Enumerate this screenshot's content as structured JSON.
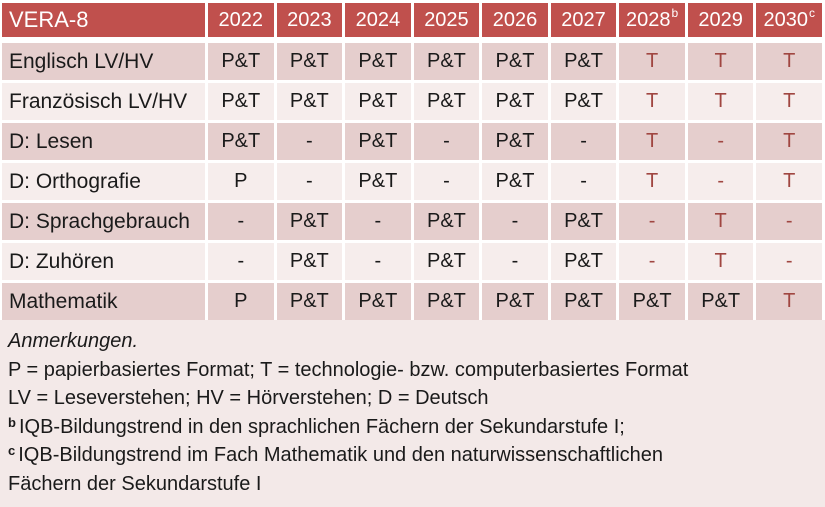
{
  "colors": {
    "header_bg": "#C0504D",
    "header_text": "#FFFFFF",
    "row_band_dark": "#E5CECD",
    "row_band_light": "#F6EDEC",
    "notes_bg": "#F3E9E8",
    "highlight_text": "#A04641",
    "body_text": "#1A1A1A"
  },
  "table": {
    "title": "VERA-8",
    "year_columns": [
      {
        "label": "2022",
        "sup": ""
      },
      {
        "label": "2023",
        "sup": ""
      },
      {
        "label": "2024",
        "sup": ""
      },
      {
        "label": "2025",
        "sup": ""
      },
      {
        "label": "2026",
        "sup": ""
      },
      {
        "label": "2027",
        "sup": ""
      },
      {
        "label": "2028",
        "sup": "b"
      },
      {
        "label": "2029",
        "sup": ""
      },
      {
        "label": "2030",
        "sup": "c"
      }
    ],
    "rows": [
      {
        "label": "Englisch LV/HV",
        "formats": [
          "P&T",
          "P&T",
          "P&T",
          "P&T",
          "P&T",
          "P&T",
          "T",
          "T",
          "T"
        ]
      },
      {
        "label": "Französisch LV/HV",
        "formats": [
          "P&T",
          "P&T",
          "P&T",
          "P&T",
          "P&T",
          "P&T",
          "T",
          "T",
          "T"
        ]
      },
      {
        "label": "D: Lesen",
        "formats": [
          "P&T",
          "-",
          "P&T",
          "-",
          "P&T",
          "-",
          "T",
          "-",
          "T"
        ]
      },
      {
        "label": "D: Orthografie",
        "formats": [
          "P",
          "-",
          "P&T",
          "-",
          "P&T",
          "-",
          "T",
          "-",
          "T"
        ]
      },
      {
        "label": "D: Sprachgebrauch",
        "formats": [
          "-",
          "P&T",
          "-",
          "P&T",
          "-",
          "P&T",
          "-",
          "T",
          "-"
        ]
      },
      {
        "label": "D: Zuhören",
        "formats": [
          "-",
          "P&T",
          "-",
          "P&T",
          "-",
          "P&T",
          "-",
          "T",
          "-"
        ]
      },
      {
        "label": "Mathematik",
        "formats": [
          "P",
          "P&T",
          "P&T",
          "P&T",
          "P&T",
          "P&T",
          "P&T",
          "P&T",
          "T"
        ]
      }
    ]
  },
  "notes": {
    "lines": [
      {
        "sup": "",
        "italic": true,
        "text": "Anmerkungen."
      },
      {
        "sup": "",
        "italic": false,
        "text": "P = papierbasiertes Format; T = technologie- bzw. computerbasiertes Format"
      },
      {
        "sup": "",
        "italic": false,
        "text": "LV = Leseverstehen; HV = Hörverstehen; D = Deutsch"
      },
      {
        "sup": "b",
        "italic": false,
        "text": "IQB-Bildungstrend in den sprachlichen Fächern der Sekundarstufe I;"
      },
      {
        "sup": "c",
        "italic": false,
        "text": "IQB-Bildungstrend im Fach Mathematik und den naturwissenschaftlichen"
      },
      {
        "sup": "",
        "italic": false,
        "text": "Fächern der Sekundarstufe I"
      }
    ]
  }
}
